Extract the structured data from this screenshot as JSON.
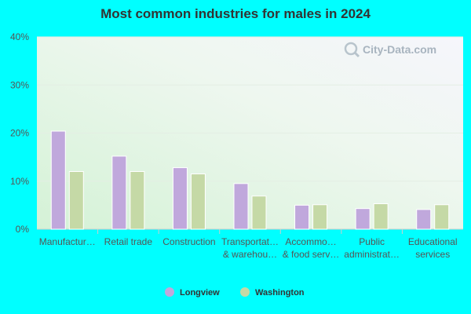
{
  "chart_data": {
    "type": "bar",
    "title": "Most common industries for males in 2024",
    "categories": [
      [
        "Manufactur…"
      ],
      [
        "Retail trade"
      ],
      [
        "Construction"
      ],
      [
        "Transportat…",
        "& warehou…"
      ],
      [
        "Accommo…",
        "& food serv…"
      ],
      [
        "Public",
        "administrat…"
      ],
      [
        "Educational",
        "services"
      ]
    ],
    "series": [
      {
        "name": "Longview",
        "color": "#c0a8dc",
        "values": [
          20.4,
          15.2,
          12.8,
          9.5,
          5.0,
          4.3,
          4.1
        ]
      },
      {
        "name": "Washington",
        "color": "#c5d9a6",
        "values": [
          12.0,
          12.0,
          11.5,
          6.9,
          5.1,
          5.3,
          5.1
        ]
      }
    ],
    "ylim": [
      0,
      40
    ],
    "yticks": [
      "0%",
      "10%",
      "20%",
      "30%",
      "40%"
    ],
    "ytick_values": [
      0,
      10,
      20,
      30,
      40
    ],
    "legend_position": "bottom",
    "grid": true
  },
  "watermark": {
    "text": "City-Data.com",
    "icon": "magnifier-icon"
  }
}
